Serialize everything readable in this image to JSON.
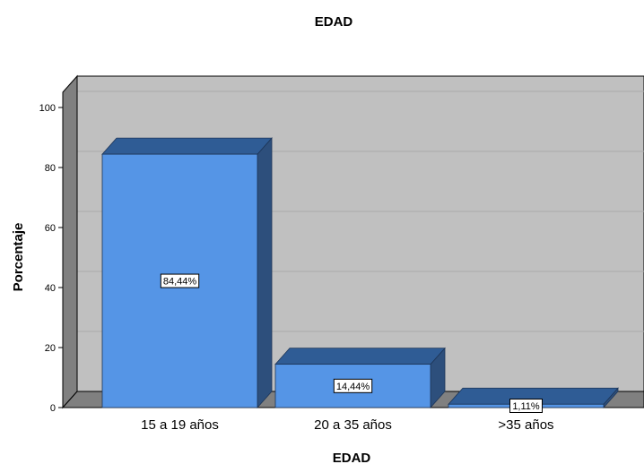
{
  "chart_data": {
    "type": "bar",
    "title": "EDAD",
    "xlabel": "EDAD",
    "ylabel": "Porcentaje",
    "categories": [
      "15 a 19 años",
      "20 a 35 años",
      ">35 años"
    ],
    "values": [
      84.44,
      14.44,
      1.11
    ],
    "data_labels": [
      "84,44%",
      "14,44%",
      "1,11%"
    ],
    "yticks": [
      "0",
      "20",
      "40",
      "60",
      "80",
      "100"
    ],
    "ylim": [
      0,
      100
    ],
    "grid": true,
    "style": "3d",
    "colors": {
      "bar_front": "#5595E6",
      "bar_top": "#2F5C95",
      "bar_side": "#2D4F7C",
      "plot_back": "#C0C0C0",
      "plot_side": "#808080",
      "floor": "#808080"
    }
  }
}
